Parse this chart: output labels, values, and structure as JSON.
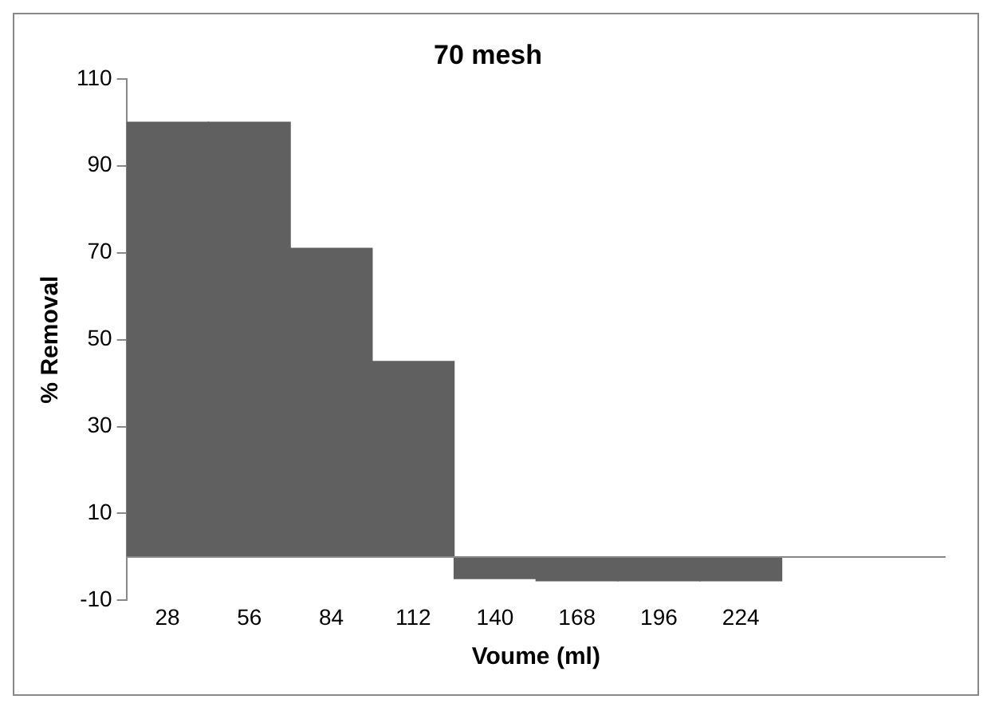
{
  "chart_data": {
    "type": "bar",
    "title": "70 mesh",
    "xlabel": "Voume (ml)",
    "ylabel": "% Removal",
    "categories": [
      "28",
      "56",
      "84",
      "112",
      "140",
      "168",
      "196",
      "224",
      null,
      null
    ],
    "values": [
      100,
      100,
      71,
      45,
      -5,
      -5.5,
      -5.5,
      -5.5,
      null,
      null
    ],
    "color": "#606060",
    "ylim": [
      -10,
      110
    ],
    "yticks": [
      -10,
      10,
      30,
      50,
      70,
      90,
      110
    ],
    "grid": false,
    "legend": false
  }
}
